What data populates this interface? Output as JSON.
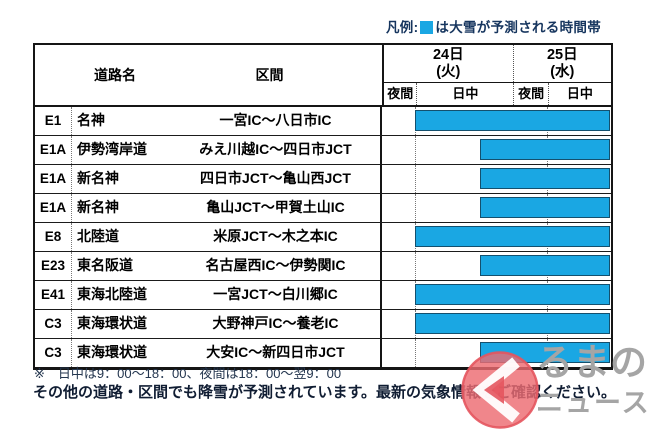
{
  "legend": {
    "prefix": "凡例:",
    "swatch_icon": "blue-square",
    "text": "は大雪が予測される時間帯"
  },
  "table": {
    "col_road_header": "道路名",
    "col_section_header": "区間",
    "dates": [
      {
        "label": "24日",
        "sub": "(火)"
      },
      {
        "label": "25日",
        "sub": "(水)"
      }
    ],
    "time_headers": [
      "夜間",
      "日中",
      "夜間",
      "日中"
    ]
  },
  "footnote": "※　日中は9：00〜18：00、夜間は18：00〜翌9：00",
  "warning": "その他の道路・区間でも降雪が予測されています。最新の気象情報をご確認ください。",
  "logo": {
    "name": "くるまのニュース",
    "mark": "ku-circle-arrow",
    "line1": "るまの",
    "line2": "ニュース"
  },
  "colors": {
    "bar_blue": "#1aa7e3",
    "legend_text": "#16355e",
    "logo_red": "#e4555e",
    "logo_gray": "#a5a5a5"
  },
  "chart_data": {
    "type": "table",
    "title": "",
    "legend": "凡例: ■は大雪が予測される時間帯",
    "note": "日中は9：00〜18：00、夜間は18：00〜翌9：00",
    "timeline_columns": [
      {
        "date": "24日(火)",
        "period": "夜間",
        "width_pct": 14.3
      },
      {
        "date": "24日(火)",
        "period": "日中",
        "width_pct": 42.7
      },
      {
        "date": "25日(水)",
        "period": "夜間",
        "width_pct": 15.2
      },
      {
        "date": "25日(水)",
        "period": "日中",
        "width_pct": 27.8
      }
    ],
    "rows": [
      {
        "code": "E1",
        "road": "名神",
        "section": "一宮IC〜八日市IC",
        "snow_start_pct": 14.3,
        "snow_end_pct": 99.6,
        "snow_period": "24日日中〜25日日中"
      },
      {
        "code": "E1A",
        "road": "伊勢湾岸道",
        "section": "みえ川越IC〜四日市JCT",
        "snow_start_pct": 42.6,
        "snow_end_pct": 99.6,
        "snow_period": "24日日中後半〜25日日中"
      },
      {
        "code": "E1A",
        "road": "新名神",
        "section": "四日市JCT〜亀山西JCT",
        "snow_start_pct": 42.6,
        "snow_end_pct": 99.6,
        "snow_period": "24日日中後半〜25日日中"
      },
      {
        "code": "E1A",
        "road": "新名神",
        "section": "亀山JCT〜甲賀土山IC",
        "snow_start_pct": 42.6,
        "snow_end_pct": 99.6,
        "snow_period": "24日日中後半〜25日日中"
      },
      {
        "code": "E8",
        "road": "北陸道",
        "section": "米原JCT〜木之本IC",
        "snow_start_pct": 14.3,
        "snow_end_pct": 99.6,
        "snow_period": "24日日中〜25日日中"
      },
      {
        "code": "E23",
        "road": "東名阪道",
        "section": "名古屋西IC〜伊勢関IC",
        "snow_start_pct": 42.6,
        "snow_end_pct": 99.6,
        "snow_period": "24日日中後半〜25日日中"
      },
      {
        "code": "E41",
        "road": "東海北陸道",
        "section": "一宮JCT〜白川郷IC",
        "snow_start_pct": 14.3,
        "snow_end_pct": 99.6,
        "snow_period": "24日日中〜25日日中"
      },
      {
        "code": "C3",
        "road": "東海環状道",
        "section": "大野神戸IC〜養老IC",
        "snow_start_pct": 14.3,
        "snow_end_pct": 99.6,
        "snow_period": "24日日中〜25日日中"
      },
      {
        "code": "C3",
        "road": "東海環状道",
        "section": "大安IC〜新四日市JCT",
        "snow_start_pct": 42.6,
        "snow_end_pct": 99.6,
        "snow_period": "24日日中後半〜25日日中"
      }
    ]
  }
}
